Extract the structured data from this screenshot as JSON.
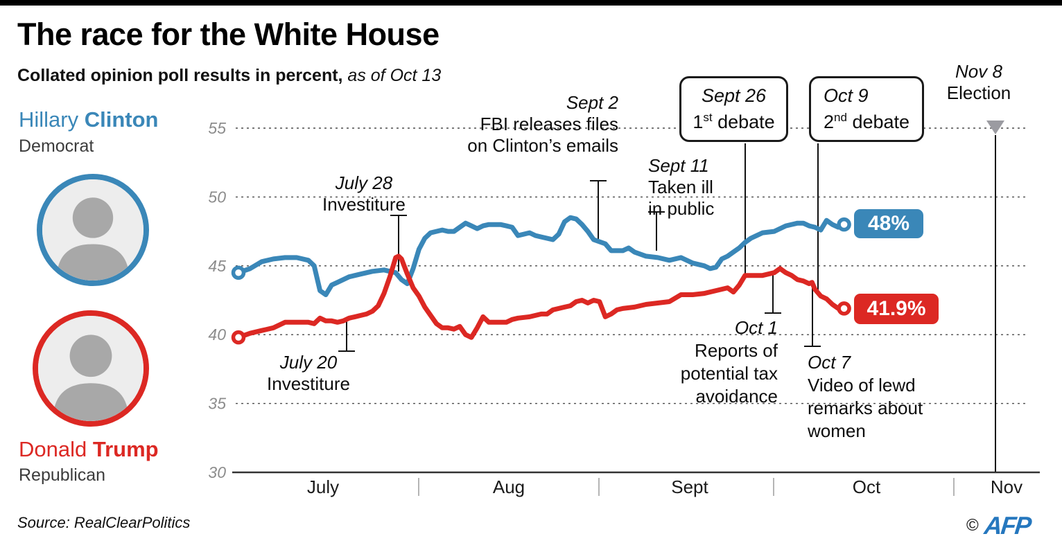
{
  "header": {
    "title": "The race for the White House",
    "subtitle_bold": "Collated opinion poll results in percent,",
    "subtitle_italic": " as of Oct 13"
  },
  "candidates": {
    "clinton": {
      "first": "Hillary",
      "last": "Clinton",
      "party": "Democrat",
      "color": "#3a87b8",
      "final_label": "48%"
    },
    "trump": {
      "first": "Donald",
      "last": "Trump",
      "party": "Republican",
      "color": "#dc2823",
      "final_label": "41.9%"
    }
  },
  "chart_data": {
    "type": "line",
    "title": "Collated opinion poll results in percent",
    "x_unit": "days since July 1, 2016",
    "x_labels": [
      "July",
      "Aug",
      "Sept",
      "Oct",
      "Nov"
    ],
    "y_ticks": [
      55,
      50,
      45,
      40,
      35,
      30
    ],
    "ylim": [
      30,
      55
    ],
    "grid": "dashed horizontal",
    "legend_position": "inline end labels",
    "series": [
      {
        "name": "Clinton",
        "color": "#3a87b8",
        "final_label": "48%",
        "points": [
          [
            0,
            44.5
          ],
          [
            2,
            44.8
          ],
          [
            4,
            45.3
          ],
          [
            6,
            45.5
          ],
          [
            8,
            45.6
          ],
          [
            10,
            45.6
          ],
          [
            12,
            45.4
          ],
          [
            13,
            45.0
          ],
          [
            14,
            43.2
          ],
          [
            15,
            42.9
          ],
          [
            16,
            43.6
          ],
          [
            17,
            43.8
          ],
          [
            19,
            44.2
          ],
          [
            21,
            44.4
          ],
          [
            23,
            44.6
          ],
          [
            25,
            44.7
          ],
          [
            26,
            44.6
          ],
          [
            27,
            44.5
          ],
          [
            28,
            44.0
          ],
          [
            29,
            43.7
          ],
          [
            30,
            44.8
          ],
          [
            31,
            46.2
          ],
          [
            32,
            47.0
          ],
          [
            33,
            47.4
          ],
          [
            35,
            47.6
          ],
          [
            36,
            47.5
          ],
          [
            37,
            47.5
          ],
          [
            38,
            47.8
          ],
          [
            39,
            48.1
          ],
          [
            40,
            47.9
          ],
          [
            41,
            47.7
          ],
          [
            42,
            47.9
          ],
          [
            43,
            48.0
          ],
          [
            45,
            48.0
          ],
          [
            46,
            47.9
          ],
          [
            47,
            47.8
          ],
          [
            48,
            47.2
          ],
          [
            49,
            47.3
          ],
          [
            50,
            47.4
          ],
          [
            51,
            47.2
          ],
          [
            52,
            47.1
          ],
          [
            54,
            46.9
          ],
          [
            55,
            47.3
          ],
          [
            56,
            48.2
          ],
          [
            57,
            48.5
          ],
          [
            58,
            48.4
          ],
          [
            59,
            48.0
          ],
          [
            60,
            47.5
          ],
          [
            61,
            46.9
          ],
          [
            63,
            46.6
          ],
          [
            64,
            46.1
          ],
          [
            66,
            46.1
          ],
          [
            67,
            46.3
          ],
          [
            68,
            46.0
          ],
          [
            70,
            45.7
          ],
          [
            72,
            45.6
          ],
          [
            74,
            45.4
          ],
          [
            76,
            45.6
          ],
          [
            78,
            45.2
          ],
          [
            80,
            45.0
          ],
          [
            81,
            44.8
          ],
          [
            82,
            44.9
          ],
          [
            83,
            45.5
          ],
          [
            84,
            45.7
          ],
          [
            85,
            46.0
          ],
          [
            86,
            46.3
          ],
          [
            87,
            46.7
          ],
          [
            88,
            47.0
          ],
          [
            89,
            47.2
          ],
          [
            90,
            47.4
          ],
          [
            92,
            47.5
          ],
          [
            93,
            47.7
          ],
          [
            94,
            47.9
          ],
          [
            96,
            48.1
          ],
          [
            97,
            48.1
          ],
          [
            98,
            47.9
          ],
          [
            99,
            47.8
          ],
          [
            100,
            47.6
          ],
          [
            101,
            48.3
          ],
          [
            102,
            48.0
          ],
          [
            103,
            47.8
          ],
          [
            104,
            48.0
          ]
        ]
      },
      {
        "name": "Trump",
        "color": "#dc2823",
        "final_label": "41.9%",
        "points": [
          [
            0,
            39.8
          ],
          [
            2,
            40.1
          ],
          [
            4,
            40.3
          ],
          [
            6,
            40.5
          ],
          [
            8,
            40.9
          ],
          [
            10,
            40.9
          ],
          [
            12,
            40.9
          ],
          [
            13,
            40.8
          ],
          [
            14,
            41.2
          ],
          [
            15,
            41.0
          ],
          [
            16,
            41.0
          ],
          [
            17,
            40.9
          ],
          [
            18,
            41.0
          ],
          [
            19,
            41.2
          ],
          [
            20,
            41.3
          ],
          [
            21,
            41.4
          ],
          [
            22,
            41.5
          ],
          [
            23,
            41.7
          ],
          [
            24,
            42.1
          ],
          [
            25,
            43.0
          ],
          [
            26,
            44.2
          ],
          [
            27,
            45.6
          ],
          [
            27.5,
            45.7
          ],
          [
            28,
            45.5
          ],
          [
            29,
            44.4
          ],
          [
            30,
            43.4
          ],
          [
            31,
            42.8
          ],
          [
            32,
            42.0
          ],
          [
            33,
            41.4
          ],
          [
            34,
            40.8
          ],
          [
            35,
            40.5
          ],
          [
            36,
            40.5
          ],
          [
            37,
            40.4
          ],
          [
            38,
            40.6
          ],
          [
            39,
            40.0
          ],
          [
            40,
            39.8
          ],
          [
            41,
            40.5
          ],
          [
            42,
            41.3
          ],
          [
            43,
            40.9
          ],
          [
            44,
            40.9
          ],
          [
            46,
            40.9
          ],
          [
            47,
            41.1
          ],
          [
            48,
            41.2
          ],
          [
            50,
            41.3
          ],
          [
            52,
            41.5
          ],
          [
            53,
            41.5
          ],
          [
            54,
            41.8
          ],
          [
            55,
            41.9
          ],
          [
            56,
            42.0
          ],
          [
            57,
            42.1
          ],
          [
            58,
            42.4
          ],
          [
            59,
            42.5
          ],
          [
            60,
            42.3
          ],
          [
            61,
            42.5
          ],
          [
            62,
            42.4
          ],
          [
            63,
            41.3
          ],
          [
            64,
            41.5
          ],
          [
            65,
            41.8
          ],
          [
            66,
            41.9
          ],
          [
            68,
            42.0
          ],
          [
            70,
            42.2
          ],
          [
            72,
            42.3
          ],
          [
            74,
            42.4
          ],
          [
            76,
            42.9
          ],
          [
            78,
            42.9
          ],
          [
            80,
            43.0
          ],
          [
            82,
            43.2
          ],
          [
            84,
            43.4
          ],
          [
            85,
            43.1
          ],
          [
            86,
            43.6
          ],
          [
            87,
            44.3
          ],
          [
            88,
            44.3
          ],
          [
            90,
            44.3
          ],
          [
            91,
            44.4
          ],
          [
            92,
            44.5
          ],
          [
            93,
            44.8
          ],
          [
            94,
            44.5
          ],
          [
            95,
            44.3
          ],
          [
            96,
            44.0
          ],
          [
            97,
            43.9
          ],
          [
            98,
            43.7
          ],
          [
            98.5,
            43.8
          ],
          [
            99,
            43.3
          ],
          [
            100,
            42.8
          ],
          [
            101,
            42.6
          ],
          [
            102,
            42.2
          ],
          [
            103,
            41.9
          ],
          [
            104,
            41.9
          ]
        ]
      }
    ],
    "annotations": [
      {
        "id": "july20",
        "date": "July 20",
        "lines": [
          "Investiture"
        ]
      },
      {
        "id": "july28",
        "date": "July 28",
        "lines": [
          "Investiture"
        ]
      },
      {
        "id": "sept2",
        "date": "Sept 2",
        "lines": [
          "FBI releases files",
          "on Clinton’s emails"
        ]
      },
      {
        "id": "sept11",
        "date": "Sept 11",
        "lines": [
          "Taken ill",
          "in public"
        ]
      },
      {
        "id": "sept26",
        "date": "Sept 26",
        "debate_num": "1",
        "debate_sup": "st",
        "debate_rest": " debate"
      },
      {
        "id": "oct9",
        "date": "Oct 9",
        "debate_num": "2",
        "debate_sup": "nd",
        "debate_rest": " debate"
      },
      {
        "id": "oct1",
        "date": "Oct 1",
        "lines": [
          "Reports of",
          "potential tax",
          "avoidance"
        ]
      },
      {
        "id": "oct7",
        "date": "Oct 7",
        "lines": [
          "Video of lewd",
          "remarks about",
          "women"
        ]
      },
      {
        "id": "nov8",
        "date": "Nov 8",
        "lines": [
          "Election"
        ]
      }
    ]
  },
  "footer": {
    "source": "Source: RealClearPolitics",
    "copyright": "©",
    "logo": "AFP"
  }
}
